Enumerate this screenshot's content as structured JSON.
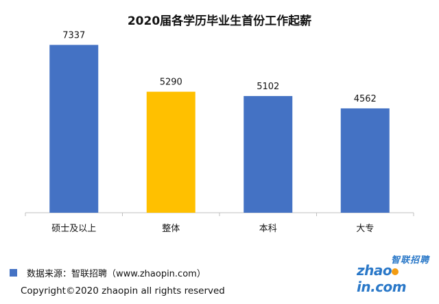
{
  "colors": {
    "primary_bar": "#4472C4",
    "highlight_bar": "#FFC000",
    "logo_blue": "#2a78c8",
    "logo_orange": "#f39c12"
  },
  "chart_data": {
    "type": "bar",
    "title": "2020届各学历毕业生首份工作起薪",
    "categories": [
      "硕士及以上",
      "整体",
      "本科",
      "大专"
    ],
    "values": [
      7337,
      5290,
      5102,
      4562
    ],
    "data_labels": [
      "7337",
      "5290",
      "5102",
      "4562"
    ],
    "highlight_category": "整体",
    "ylim": [
      0,
      8400
    ],
    "grid": false,
    "xlabel": "",
    "ylabel": ""
  },
  "footer": {
    "source": "数据来源：智联招聘（www.zhaopin.com）",
    "copyright": "Copyright©2020 zhaopin all rights reserved"
  },
  "logo": {
    "icon": "zhaopin-logo",
    "cn_text": "智联招聘",
    "en_text": "zhaopin.com"
  }
}
